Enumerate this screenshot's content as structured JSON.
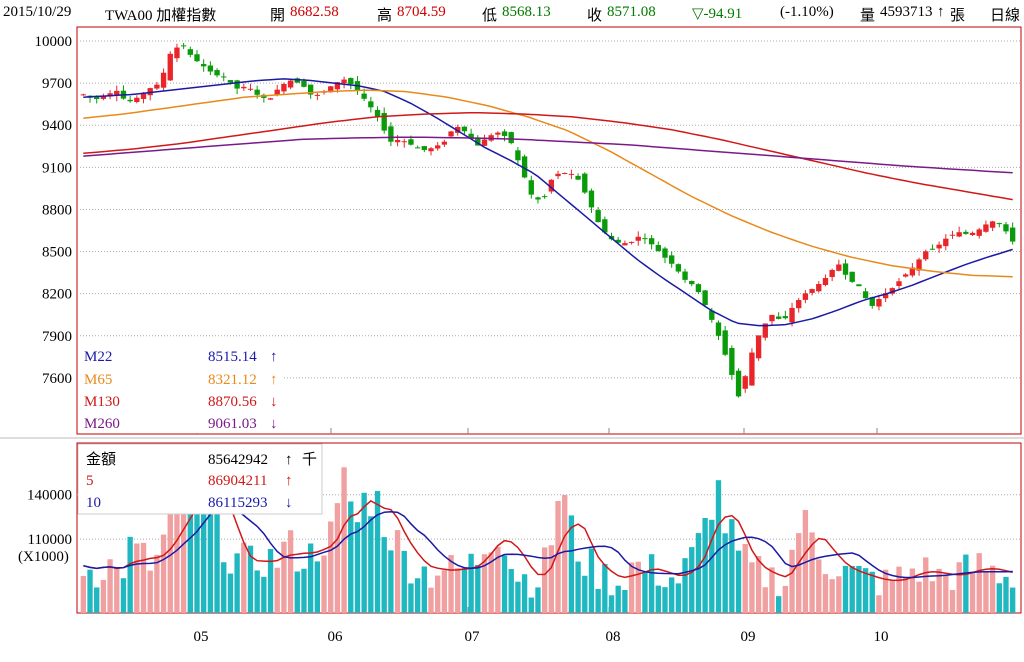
{
  "header": {
    "date": "2015/10/29",
    "symbol": "TWA00 加權指數",
    "open_label": "開",
    "open": "8682.58",
    "high_label": "高",
    "high": "8704.59",
    "low_label": "低",
    "low": "8568.13",
    "close_label": "收",
    "close": "8571.08",
    "change": "▽-94.91",
    "change_pct": "(-1.10%)",
    "volume_label": "量",
    "volume": "4593713",
    "volume_arrow": "↑",
    "volume_unit": "張",
    "period": "日線"
  },
  "colors": {
    "up": "#e8262a",
    "down": "#0a9b0a",
    "border": "#c00000",
    "m22": "#1a1aa6",
    "m65": "#e88a1a",
    "m130": "#d01818",
    "m260": "#7a1a8a",
    "vol_up": "#f0a0a0",
    "vol_down": "#20b8c0",
    "ma5": "#d01818",
    "ma10": "#1a1aa6"
  },
  "chart_data": [
    {
      "type": "candlestick",
      "x_ticks": [
        "05",
        "06",
        "07",
        "08",
        "09",
        "10"
      ],
      "ylim": [
        7200,
        10100
      ],
      "y_ticks": [
        10000,
        9700,
        9400,
        9100,
        8800,
        8500,
        8200,
        7900,
        7600
      ],
      "n_days": 140,
      "candles_anchor_closes": [
        9620,
        9580,
        9610,
        9650,
        9560,
        9600,
        9660,
        9700,
        9920,
        9980,
        9880,
        9820,
        9760,
        9740,
        9660,
        9680,
        9610,
        9580,
        9680,
        9720,
        9690,
        9600,
        9640,
        9700,
        9730,
        9650,
        9560,
        9450,
        9280,
        9300,
        9260,
        9220,
        9240,
        9280,
        9400,
        9350,
        9250,
        9320,
        9350,
        9300,
        9100,
        8900,
        8850,
        9050,
        9060,
        9050,
        8900,
        8720,
        8600,
        8560,
        8560,
        8620,
        8550,
        8470,
        8400,
        8300,
        8250,
        8100,
        7920,
        7700,
        7450,
        7750,
        7950,
        8050,
        8000,
        8120,
        8200,
        8250,
        8320,
        8420,
        8300,
        8250,
        8100,
        8180,
        8240,
        8320,
        8400,
        8500,
        8530,
        8600,
        8640,
        8620,
        8660,
        8720,
        8690,
        8571
      ],
      "indicators": [
        {
          "name": "M22",
          "value": "8515.14",
          "arrow": "↑",
          "values": [
            9600,
            9610,
            9620,
            9640,
            9660,
            9680,
            9700,
            9720,
            9730,
            9720,
            9700,
            9680,
            9640,
            9560,
            9460,
            9350,
            9240,
            9150,
            9050,
            8900,
            8750,
            8600,
            8450,
            8320,
            8200,
            8080,
            7990,
            7970,
            7980,
            8020,
            8080,
            8150,
            8200,
            8260,
            8330,
            8400,
            8460,
            8515
          ]
        },
        {
          "name": "M65",
          "value": "8321.12",
          "arrow": "↑",
          "values": [
            9450,
            9480,
            9520,
            9560,
            9600,
            9620,
            9640,
            9650,
            9640,
            9600,
            9540,
            9460,
            9360,
            9220,
            9060,
            8900,
            8760,
            8640,
            8540,
            8460,
            8400,
            8360,
            8330,
            8321
          ]
        },
        {
          "name": "M130",
          "value": "8870.56",
          "arrow": "↓",
          "values": [
            9200,
            9230,
            9270,
            9320,
            9370,
            9420,
            9460,
            9480,
            9490,
            9480,
            9460,
            9420,
            9370,
            9300,
            9220,
            9140,
            9060,
            8990,
            8930,
            8870
          ]
        },
        {
          "name": "M260",
          "value": "9061.03",
          "arrow": "↓",
          "values": [
            9180,
            9210,
            9240,
            9270,
            9300,
            9310,
            9315,
            9310,
            9300,
            9280,
            9260,
            9230,
            9200,
            9170,
            9140,
            9110,
            9085,
            9061
          ]
        }
      ]
    },
    {
      "type": "bar",
      "ylim": [
        60000,
        175000
      ],
      "y_ticks": [
        140000,
        110000
      ],
      "unit": "(X1000)",
      "indicators": [
        {
          "name": "金額",
          "value": "85642942",
          "arrow": "↑",
          "unit": "千"
        },
        {
          "name": "5",
          "value": "86904211",
          "arrow": "↑"
        },
        {
          "name": "10",
          "value": "86115293",
          "arrow": "↓"
        }
      ],
      "volume_anchors": [
        92000,
        88000,
        95000,
        85000,
        104000,
        97000,
        90000,
        118000,
        128000,
        132000,
        160000,
        150000,
        100000,
        96000,
        92000,
        98000,
        94000,
        105000,
        100000,
        97000,
        112000,
        110000,
        150000,
        120000,
        145000,
        128000,
        112000,
        96000,
        92000,
        86000,
        92000,
        88000,
        90000,
        95000,
        112000,
        120000,
        90000,
        84000,
        82000,
        96000,
        148000,
        112000,
        96000,
        88000,
        84000,
        80000,
        92000,
        90000,
        88000,
        85000,
        82000,
        96000,
        110000,
        150000,
        118000,
        98000,
        90000,
        86000,
        84000,
        82000,
        120000,
        115000,
        98000,
        92000,
        88000,
        85000,
        84000,
        80000,
        82000,
        86000,
        90000,
        88000,
        84000,
        86000,
        88000,
        92000,
        90000,
        86000,
        85642
      ]
    }
  ]
}
